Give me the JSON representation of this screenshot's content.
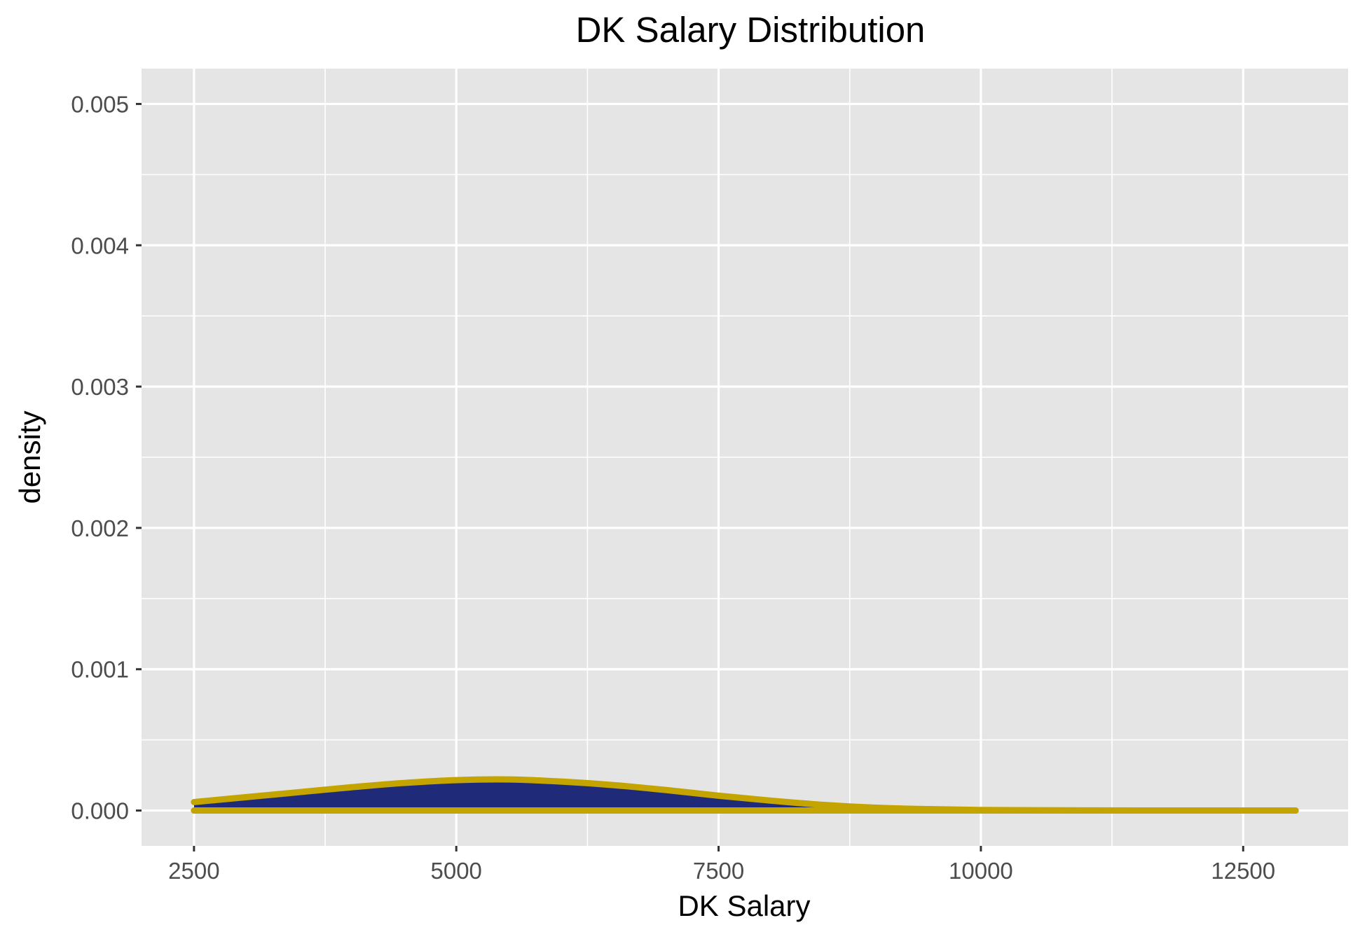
{
  "chart_data": {
    "type": "area",
    "title": "DK Salary Distribution",
    "xlabel": "DK Salary",
    "ylabel": "density",
    "xlim": [
      2000,
      13500
    ],
    "ylim": [
      -0.00025,
      0.00525
    ],
    "x_ticks": [
      2500,
      5000,
      7500,
      10000,
      12500
    ],
    "x_tick_labels": [
      "2500",
      "5000",
      "7500",
      "10000",
      "12500"
    ],
    "y_ticks": [
      0,
      0.001,
      0.002,
      0.003,
      0.004,
      0.005
    ],
    "y_tick_labels": [
      "0.000",
      "0.001",
      "0.002",
      "0.003",
      "0.004",
      "0.005"
    ],
    "grid": true,
    "legend": "none",
    "colors": {
      "panel_background": "#e5e5e5",
      "grid": "#ffffff",
      "fill": "#1f2a78",
      "outline": "#c4a400"
    },
    "series": [
      {
        "x": [
          2500,
          3000,
          3500,
          4000,
          4500,
          5000,
          5500,
          6000,
          6500,
          7000,
          7500,
          8000,
          8500,
          9000,
          9500,
          10000,
          10500,
          11000,
          11500,
          12000,
          12500,
          13000
        ],
        "y": [
          6e-05,
          9.5e-05,
          0.00013,
          0.000165,
          0.000195,
          0.000215,
          0.00022,
          0.000205,
          0.00018,
          0.000145,
          0.000105,
          7e-05,
          4e-05,
          2e-05,
          1e-05,
          4e-06,
          2e-06,
          1e-06,
          5e-07,
          2e-07,
          1e-07,
          0.0
        ]
      }
    ]
  }
}
